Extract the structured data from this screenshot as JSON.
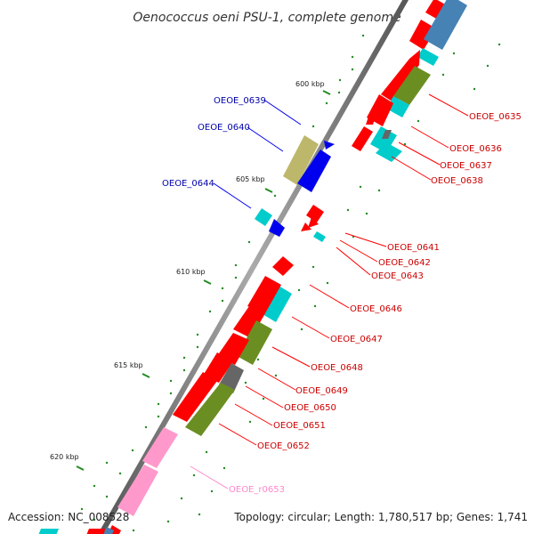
{
  "title": "Oenococcus oeni PSU-1, complete genome",
  "footer": {
    "accession": "Accession: NC_008528",
    "summary": "Topology: circular; Length: 1,780,517 bp; Genes: 1,741"
  },
  "colors": {
    "backbone": "#808080",
    "cds": "#ff0000",
    "cyan": "#00cccc",
    "olive": "#6b8e23",
    "gray": "#666666",
    "khaki": "#bdb76b",
    "blue": "#0000ee",
    "rna": "#ff99cc",
    "steel": "#4682b4",
    "tick": "#228b22",
    "label_red": "#cc0000",
    "label_blue": "#0000aa",
    "label_pink": "#ff88cc"
  },
  "ticks": [
    {
      "label": "600 kbp"
    },
    {
      "label": "605 kbp"
    },
    {
      "label": "610 kbp"
    },
    {
      "label": "615 kbp"
    },
    {
      "label": "620 kbp"
    }
  ],
  "genes": [
    {
      "id": "OEOE_0635",
      "track": "red"
    },
    {
      "id": "OEOE_0636",
      "track": "red"
    },
    {
      "id": "OEOE_0637",
      "track": "red"
    },
    {
      "id": "OEOE_0638",
      "track": "red"
    },
    {
      "id": "OEOE_0639",
      "track": "blue"
    },
    {
      "id": "OEOE_0640",
      "track": "blue"
    },
    {
      "id": "OEOE_0644",
      "track": "blue"
    },
    {
      "id": "OEOE_0641",
      "track": "red"
    },
    {
      "id": "OEOE_0642",
      "track": "red"
    },
    {
      "id": "OEOE_0643",
      "track": "red"
    },
    {
      "id": "OEOE_0646",
      "track": "red"
    },
    {
      "id": "OEOE_0647",
      "track": "red"
    },
    {
      "id": "OEOE_0648",
      "track": "red"
    },
    {
      "id": "OEOE_0649",
      "track": "red"
    },
    {
      "id": "OEOE_0650",
      "track": "red"
    },
    {
      "id": "OEOE_0651",
      "track": "red"
    },
    {
      "id": "OEOE_0652",
      "track": "red"
    },
    {
      "id": "OEOE_r0653",
      "track": "pink"
    }
  ]
}
